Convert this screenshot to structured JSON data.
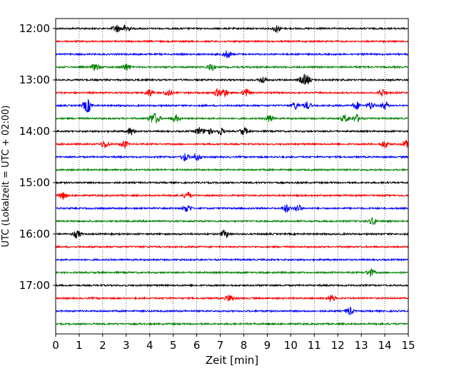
{
  "chart_data": {
    "type": "line",
    "title": "",
    "xlabel": "Zeit  [min]",
    "ylabel": "UTC (Lokalzeit = UTC + 02:00)",
    "xlim": [
      0,
      15
    ],
    "x_ticks": [
      "0",
      "1",
      "2",
      "3",
      "4",
      "5",
      "6",
      "7",
      "8",
      "9",
      "10",
      "11",
      "12",
      "13",
      "14",
      "15"
    ],
    "y_tick_labels": [
      "12:00",
      "13:00",
      "14:00",
      "15:00",
      "16:00",
      "17:00"
    ],
    "grid": "vertical dotted",
    "trace_start": "12:00",
    "trace_interval_min": 15,
    "trace_count": 24,
    "colors": [
      "#000000",
      "#ff0000",
      "#0000ff",
      "#008000"
    ],
    "traces": [
      {
        "start": "12:00",
        "color": "#000000",
        "bursts": [
          2.6,
          3.0,
          9.4
        ]
      },
      {
        "start": "12:15",
        "color": "#ff0000",
        "bursts": []
      },
      {
        "start": "12:30",
        "color": "#0000ff",
        "bursts": [
          7.3
        ]
      },
      {
        "start": "12:45",
        "color": "#008000",
        "bursts": [
          1.7,
          3.0,
          6.6
        ]
      },
      {
        "start": "13:00",
        "color": "#000000",
        "bursts": [
          8.8,
          10.5,
          10.7
        ]
      },
      {
        "start": "13:15",
        "color": "#ff0000",
        "bursts": [
          4.0,
          4.8,
          6.9,
          7.2,
          8.1,
          13.9
        ]
      },
      {
        "start": "13:30",
        "color": "#0000ff",
        "bursts": [
          1.3,
          1.4,
          10.2,
          10.7,
          12.8,
          13.4,
          14.0
        ]
      },
      {
        "start": "13:45",
        "color": "#008000",
        "bursts": [
          4.1,
          4.3,
          5.1,
          9.1,
          12.3,
          12.8
        ]
      },
      {
        "start": "14:00",
        "color": "#000000",
        "bursts": [
          3.2,
          6.1,
          6.5,
          7.0,
          8.0
        ]
      },
      {
        "start": "14:15",
        "color": "#ff0000",
        "bursts": [
          2.1,
          2.9,
          14.0,
          14.9
        ]
      },
      {
        "start": "14:30",
        "color": "#0000ff",
        "bursts": [
          5.5,
          6.0
        ]
      },
      {
        "start": "14:45",
        "color": "#008000",
        "bursts": []
      },
      {
        "start": "15:00",
        "color": "#000000",
        "bursts": []
      },
      {
        "start": "15:15",
        "color": "#ff0000",
        "bursts": [
          0.3,
          5.6
        ]
      },
      {
        "start": "15:30",
        "color": "#0000ff",
        "bursts": [
          5.6,
          9.8,
          10.3
        ]
      },
      {
        "start": "15:45",
        "color": "#008000",
        "bursts": [
          13.5
        ]
      },
      {
        "start": "16:00",
        "color": "#000000",
        "bursts": [
          0.9,
          7.2
        ]
      },
      {
        "start": "16:15",
        "color": "#ff0000",
        "bursts": []
      },
      {
        "start": "16:30",
        "color": "#0000ff",
        "bursts": []
      },
      {
        "start": "16:45",
        "color": "#008000",
        "bursts": [
          13.4
        ]
      },
      {
        "start": "17:00",
        "color": "#000000",
        "bursts": []
      },
      {
        "start": "17:15",
        "color": "#ff0000",
        "bursts": [
          7.4,
          11.7
        ]
      },
      {
        "start": "17:30",
        "color": "#0000ff",
        "bursts": [
          12.5
        ]
      },
      {
        "start": "17:45",
        "color": "#008000",
        "bursts": []
      }
    ]
  }
}
